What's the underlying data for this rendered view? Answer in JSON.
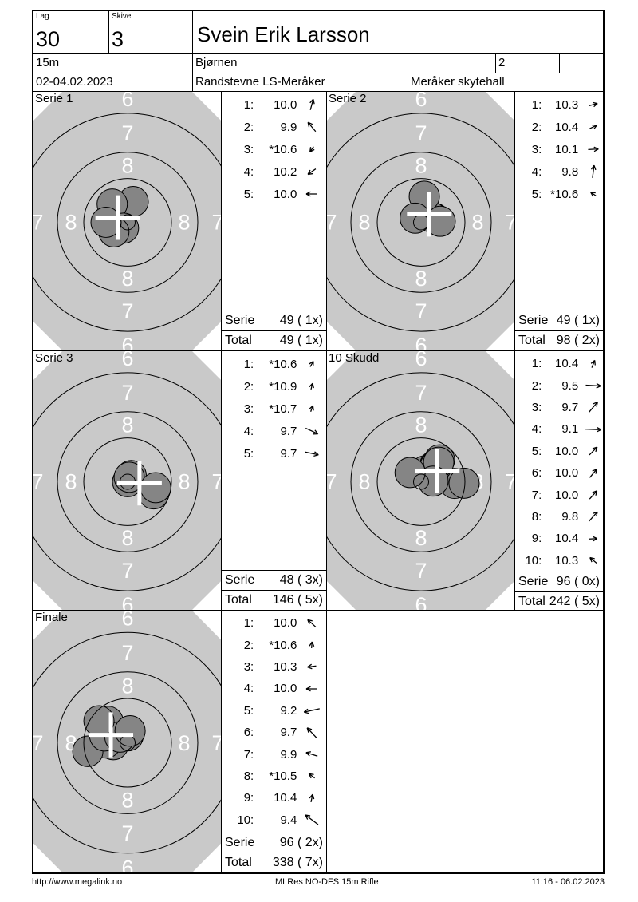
{
  "header": {
    "lag_label": "Lag",
    "lag_value": "30",
    "skive_label": "Skive",
    "skive_value": "3",
    "shooter_name": "Svein Erik Larsson",
    "distance": "15m",
    "club": "Bjørnen",
    "class_value": "2",
    "dates": "02-04.02.2023",
    "event": "Randstevne LS-Meråker",
    "venue": "Meråker skytehall"
  },
  "target": {
    "paper_color": "#c9c9c9",
    "hole_color": "#858585",
    "ring_line_color": "#000000",
    "ring_label_color": "#ffffff",
    "cross_color": "#ffffff",
    "ring_numbers": [
      "8",
      "7",
      "6"
    ]
  },
  "score_labels": {
    "serie": "Serie",
    "total": "Total"
  },
  "panels": [
    {
      "label": "Serie 1",
      "serie_score": "49 ( 1x)",
      "total_score": "49 ( 1x)",
      "shots": [
        {
          "no": "1:",
          "value": "10.0",
          "v": 10.0,
          "dir": 75
        },
        {
          "no": "2:",
          "value": "9.9",
          "v": 9.9,
          "dir": 130
        },
        {
          "no": "3:",
          "value": "*10.6",
          "v": 10.6,
          "dir": 235
        },
        {
          "no": "4:",
          "value": "10.2",
          "v": 10.2,
          "dir": 215
        },
        {
          "no": "5:",
          "value": "10.0",
          "v": 10.0,
          "dir": 180
        }
      ]
    },
    {
      "label": "Serie 2",
      "serie_score": "49 ( 1x)",
      "total_score": "98 ( 2x)",
      "shots": [
        {
          "no": "1:",
          "value": "10.3",
          "v": 10.3,
          "dir": 15
        },
        {
          "no": "2:",
          "value": "10.4",
          "v": 10.4,
          "dir": 25
        },
        {
          "no": "3:",
          "value": "10.1",
          "v": 10.1,
          "dir": 3
        },
        {
          "no": "4:",
          "value": "9.8",
          "v": 9.8,
          "dir": 83
        },
        {
          "no": "5:",
          "value": "*10.6",
          "v": 10.6,
          "dir": 145
        }
      ]
    },
    {
      "label": "Serie 3",
      "serie_score": "48 ( 3x)",
      "total_score": "146 ( 5x)",
      "shots": [
        {
          "no": "1:",
          "value": "*10.6",
          "v": 10.6,
          "dir": 60
        },
        {
          "no": "2:",
          "value": "*10.9",
          "v": 10.9,
          "dir": 75
        },
        {
          "no": "3:",
          "value": "*10.7",
          "v": 10.7,
          "dir": 70
        },
        {
          "no": "4:",
          "value": "9.7",
          "v": 9.7,
          "dir": -25
        },
        {
          "no": "5:",
          "value": "9.7",
          "v": 9.7,
          "dir": -12
        }
      ]
    },
    {
      "label": "10 Skudd",
      "serie_score": "96 ( 0x)",
      "total_score": "242 ( 5x)",
      "shots": [
        {
          "no": "1:",
          "value": "10.4",
          "v": 10.4,
          "dir": 68
        },
        {
          "no": "2:",
          "value": "9.5",
          "v": 9.5,
          "dir": -3
        },
        {
          "no": "3:",
          "value": "9.7",
          "v": 9.7,
          "dir": 50
        },
        {
          "no": "4:",
          "value": "9.1",
          "v": 9.1,
          "dir": -2
        },
        {
          "no": "5:",
          "value": "10.0",
          "v": 10.0,
          "dir": 45
        },
        {
          "no": "6:",
          "value": "10.0",
          "v": 10.0,
          "dir": 50
        },
        {
          "no": "7:",
          "value": "10.0",
          "v": 10.0,
          "dir": 48
        },
        {
          "no": "8:",
          "value": "9.8",
          "v": 9.8,
          "dir": 48
        },
        {
          "no": "9:",
          "value": "10.4",
          "v": 10.4,
          "dir": 3
        },
        {
          "no": "10:",
          "value": "10.3",
          "v": 10.3,
          "dir": 140
        }
      ]
    },
    {
      "label": "Finale",
      "serie_score": "96 ( 2x)",
      "total_score": "338 ( 7x)",
      "shots": [
        {
          "no": "1:",
          "value": "10.0",
          "v": 10.0,
          "dir": 138
        },
        {
          "no": "2:",
          "value": "*10.6",
          "v": 10.6,
          "dir": 85
        },
        {
          "no": "3:",
          "value": "10.3",
          "v": 10.3,
          "dir": 187
        },
        {
          "no": "4:",
          "value": "10.0",
          "v": 10.0,
          "dir": 180
        },
        {
          "no": "5:",
          "value": "9.2",
          "v": 9.2,
          "dir": 192
        },
        {
          "no": "6:",
          "value": "9.7",
          "v": 9.7,
          "dir": 133
        },
        {
          "no": "7:",
          "value": "9.9",
          "v": 9.9,
          "dir": 163
        },
        {
          "no": "8:",
          "value": "*10.5",
          "v": 10.5,
          "dir": 143
        },
        {
          "no": "9:",
          "value": "10.4",
          "v": 10.4,
          "dir": 78
        },
        {
          "no": "10:",
          "value": "9.4",
          "v": 9.4,
          "dir": 143
        }
      ]
    }
  ],
  "footer": {
    "left": "http://www.megalink.no",
    "center": "MLRes NO-DFS 15m Rifle",
    "right": "11:16 - 06.02.2023"
  }
}
